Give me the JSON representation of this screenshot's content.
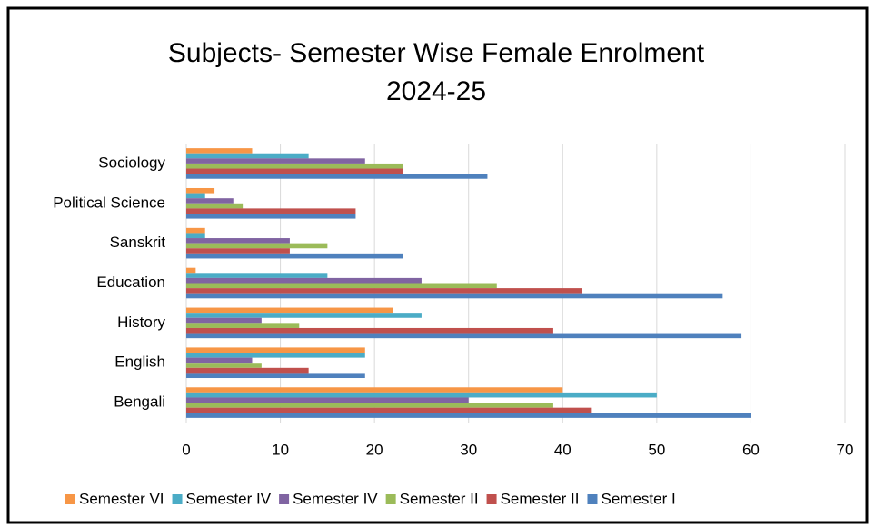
{
  "chart_data": {
    "type": "barh",
    "title": [
      "Subjects- Semester Wise Female Enrolment",
      "2024-25"
    ],
    "categories": [
      "Bengali",
      "English",
      "History",
      "Education",
      "Sanskrit",
      "Political Science",
      "Sociology"
    ],
    "series": [
      {
        "name": "Semester VI",
        "color": "#f79646",
        "values": [
          40,
          19,
          22,
          1,
          2,
          3,
          7
        ]
      },
      {
        "name": "Semester IV",
        "color": "#4bacc6",
        "values": [
          50,
          19,
          25,
          15,
          2,
          2,
          13
        ]
      },
      {
        "name": "Semester IV",
        "color": "#8064a2",
        "values": [
          30,
          7,
          8,
          25,
          11,
          5,
          19
        ]
      },
      {
        "name": "Semester II",
        "color": "#9bbb59",
        "values": [
          39,
          8,
          12,
          33,
          15,
          6,
          23
        ]
      },
      {
        "name": "Semester II",
        "color": "#c0504d",
        "values": [
          43,
          13,
          39,
          42,
          11,
          18,
          23
        ]
      },
      {
        "name": "Semester I",
        "color": "#4f81bd",
        "values": [
          60,
          19,
          59,
          57,
          23,
          18,
          32
        ]
      }
    ],
    "xlim": [
      0,
      70
    ],
    "xticks": [
      0,
      10,
      20,
      30,
      40,
      50,
      60,
      70
    ],
    "grid": true,
    "legend": "bottom"
  }
}
